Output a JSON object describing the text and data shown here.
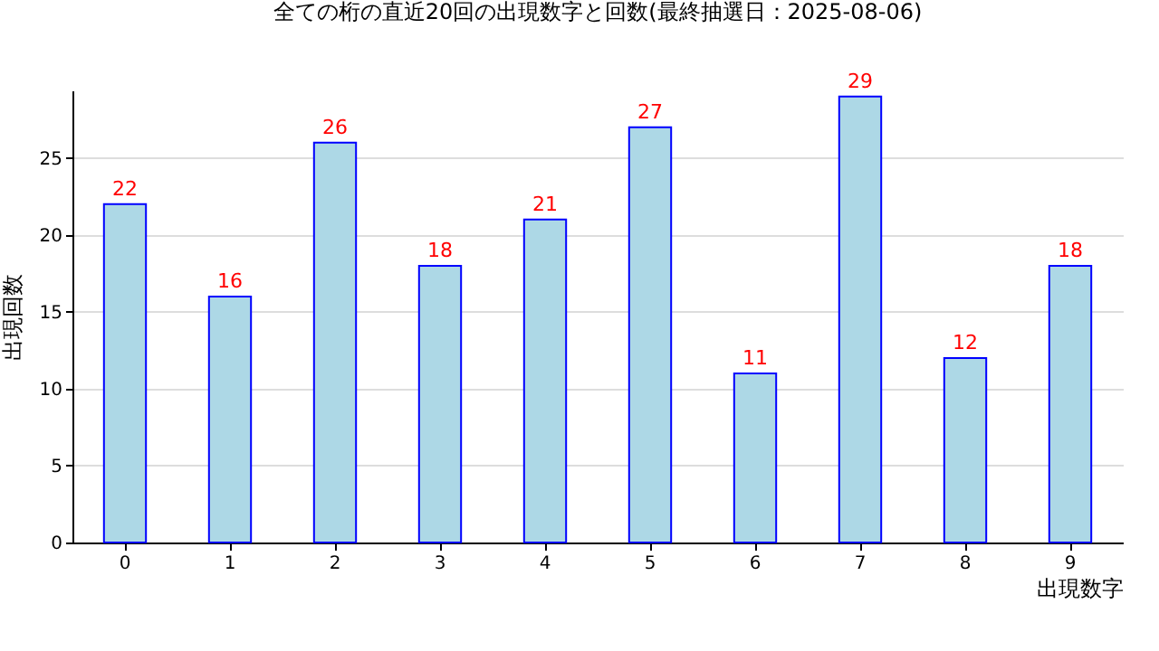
{
  "chart_data": {
    "type": "bar",
    "title": "全ての桁の直近20回の出現数字と回数(最終抽選日：2025-08-06)",
    "xlabel": "出現数字",
    "ylabel": "出現回数",
    "categories": [
      "0",
      "1",
      "2",
      "3",
      "4",
      "5",
      "6",
      "7",
      "8",
      "9"
    ],
    "values": [
      22,
      16,
      26,
      18,
      21,
      27,
      11,
      29,
      12,
      18
    ],
    "color": "#add8e6",
    "ylim": [
      0,
      29.4
    ],
    "yticks": [
      0,
      5,
      10,
      15,
      20,
      25
    ],
    "grid": "y",
    "data_labels": true
  }
}
